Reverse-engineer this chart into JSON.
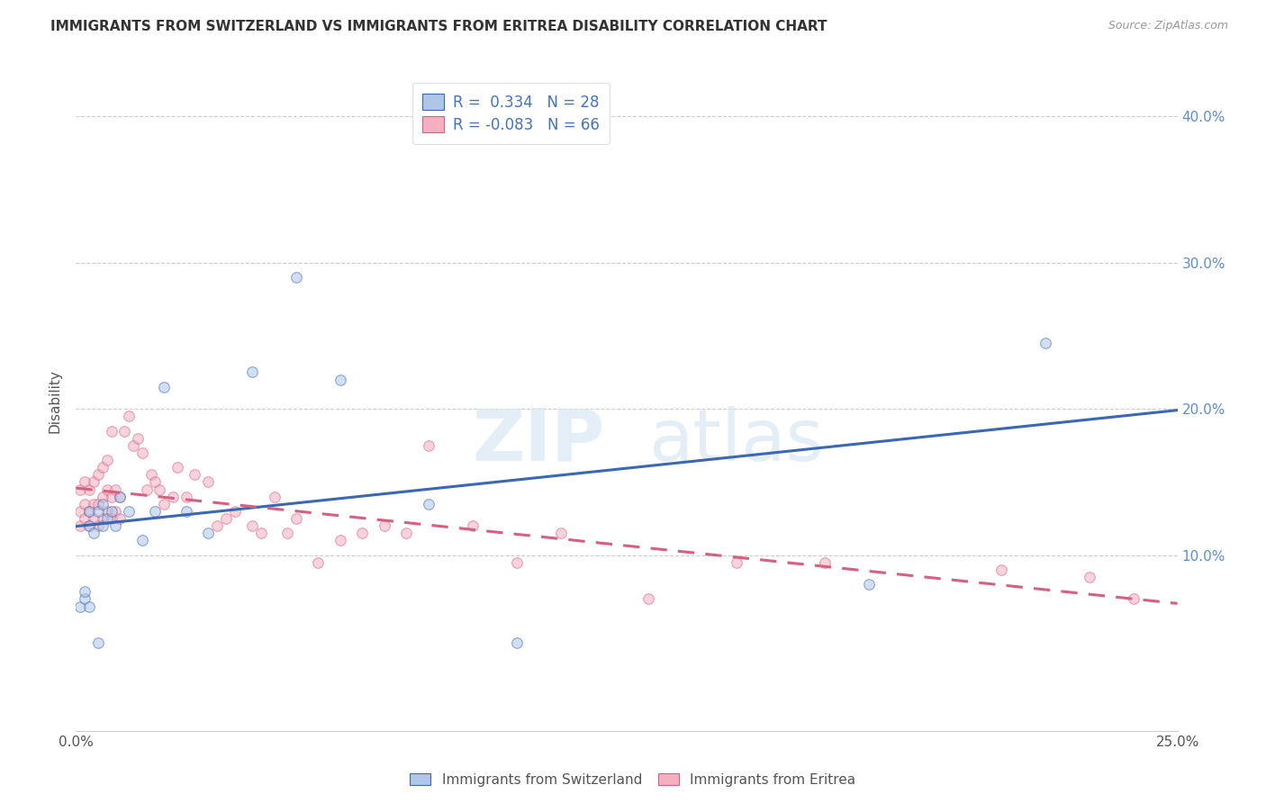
{
  "title": "IMMIGRANTS FROM SWITZERLAND VS IMMIGRANTS FROM ERITREA DISABILITY CORRELATION CHART",
  "source": "Source: ZipAtlas.com",
  "ylabel": "Disability",
  "xlim": [
    0.0,
    0.25
  ],
  "ylim": [
    -0.02,
    0.43
  ],
  "xticks": [
    0.0,
    0.25
  ],
  "xtick_labels": [
    "0.0%",
    "25.0%"
  ],
  "yticks": [
    0.1,
    0.2,
    0.3,
    0.4
  ],
  "ytick_labels": [
    "10.0%",
    "20.0%",
    "30.0%",
    "40.0%"
  ],
  "grid_yticks": [
    0.1,
    0.2,
    0.3,
    0.4
  ],
  "background_color": "#ffffff",
  "grid_color": "#cccccc",
  "swiss_color": "#aec6e8",
  "eritrea_color": "#f4afc0",
  "swiss_line_color": "#3a68b5",
  "eritrea_line_color": "#d95f80",
  "swiss_R": 0.334,
  "swiss_N": 28,
  "eritrea_R": -0.083,
  "eritrea_N": 66,
  "swiss_points_x": [
    0.001,
    0.002,
    0.002,
    0.003,
    0.003,
    0.004,
    0.005,
    0.005,
    0.006,
    0.006,
    0.007,
    0.008,
    0.009,
    0.01,
    0.012,
    0.015,
    0.018,
    0.02,
    0.025,
    0.03,
    0.04,
    0.05,
    0.06,
    0.08,
    0.1,
    0.18,
    0.22,
    0.003
  ],
  "swiss_points_y": [
    0.065,
    0.07,
    0.075,
    0.12,
    0.13,
    0.115,
    0.04,
    0.13,
    0.12,
    0.135,
    0.125,
    0.13,
    0.12,
    0.14,
    0.13,
    0.11,
    0.13,
    0.215,
    0.13,
    0.115,
    0.225,
    0.29,
    0.22,
    0.135,
    0.04,
    0.08,
    0.245,
    0.065
  ],
  "eritrea_points_x": [
    0.001,
    0.001,
    0.001,
    0.002,
    0.002,
    0.002,
    0.003,
    0.003,
    0.003,
    0.004,
    0.004,
    0.004,
    0.005,
    0.005,
    0.005,
    0.006,
    0.006,
    0.006,
    0.007,
    0.007,
    0.007,
    0.008,
    0.008,
    0.008,
    0.009,
    0.009,
    0.01,
    0.01,
    0.011,
    0.012,
    0.013,
    0.014,
    0.015,
    0.016,
    0.017,
    0.018,
    0.019,
    0.02,
    0.022,
    0.023,
    0.025,
    0.027,
    0.03,
    0.032,
    0.034,
    0.036,
    0.04,
    0.042,
    0.045,
    0.048,
    0.05,
    0.055,
    0.06,
    0.065,
    0.07,
    0.075,
    0.08,
    0.09,
    0.1,
    0.11,
    0.13,
    0.15,
    0.17,
    0.21,
    0.23,
    0.24
  ],
  "eritrea_points_y": [
    0.12,
    0.13,
    0.145,
    0.125,
    0.135,
    0.15,
    0.12,
    0.13,
    0.145,
    0.125,
    0.135,
    0.15,
    0.12,
    0.135,
    0.155,
    0.125,
    0.14,
    0.16,
    0.13,
    0.145,
    0.165,
    0.125,
    0.14,
    0.185,
    0.13,
    0.145,
    0.125,
    0.14,
    0.185,
    0.195,
    0.175,
    0.18,
    0.17,
    0.145,
    0.155,
    0.15,
    0.145,
    0.135,
    0.14,
    0.16,
    0.14,
    0.155,
    0.15,
    0.12,
    0.125,
    0.13,
    0.12,
    0.115,
    0.14,
    0.115,
    0.125,
    0.095,
    0.11,
    0.115,
    0.12,
    0.115,
    0.175,
    0.12,
    0.095,
    0.115,
    0.07,
    0.095,
    0.095,
    0.09,
    0.085,
    0.07
  ],
  "watermark_zip": "ZIP",
  "watermark_atlas": "atlas",
  "marker_size": 70,
  "marker_alpha": 0.55,
  "line_width": 2.2
}
